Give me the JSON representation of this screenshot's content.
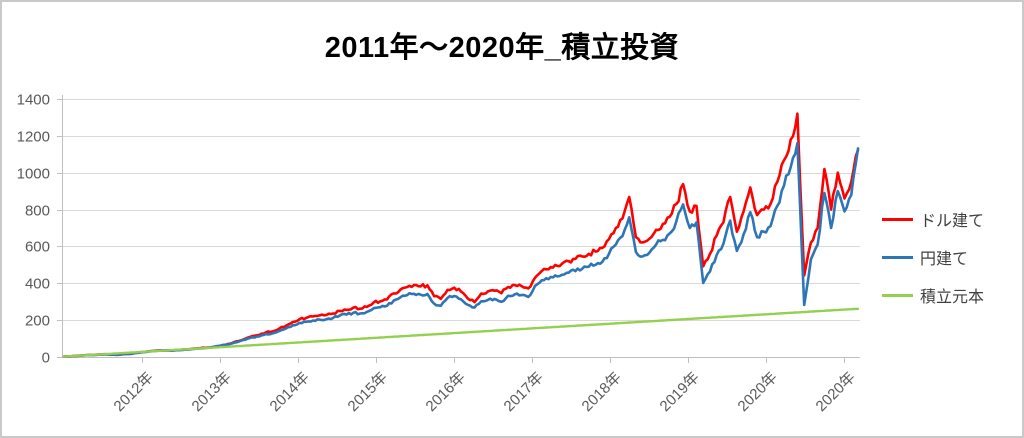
{
  "page": {
    "background": "#FFFFFF",
    "frame_border_color": "#C9C9C9"
  },
  "chart_data": {
    "type": "line",
    "title": "2011年～2020年_積立投資",
    "title_color": "#000000",
    "grid": true,
    "grid_color": "#D9D9D9",
    "axis_line_color": "#BFBFBF",
    "tick_label_color": "#595959",
    "legend_position": "right",
    "legend_text_color": "#404040",
    "ylim": [
      0,
      1400
    ],
    "y_ticks": [
      0,
      200,
      400,
      600,
      800,
      1000,
      1200,
      1400
    ],
    "y_tick_labels": [
      "0",
      "200",
      "400",
      "600",
      "800",
      "1000",
      "1200",
      "1400"
    ],
    "x_tick_labels": [
      "2012年",
      "2013年",
      "2014年",
      "2015年",
      "2016年",
      "2017年",
      "2018年",
      "2019年",
      "2020年",
      "2020年"
    ],
    "x_unit": "month",
    "x_start": "2011-01",
    "x_end": "2020-11",
    "series": [
      {
        "name": "ドル建て",
        "color": "#FF0000",
        "values": [
          2,
          4,
          7,
          9,
          11,
          13,
          15,
          13,
          12,
          16,
          18,
          24,
          28,
          32,
          35,
          36,
          35,
          38,
          41,
          44,
          48,
          50,
          53,
          59,
          66,
          76,
          87,
          100,
          114,
          119,
          134,
          139,
          154,
          170,
          190,
          205,
          212,
          220,
          226,
          228,
          236,
          250,
          256,
          268,
          262,
          272,
          295,
          302,
          312,
          345,
          366,
          380,
          390,
          383,
          389,
          330,
          315,
          364,
          376,
          355,
          318,
          298,
          344,
          356,
          360,
          346,
          380,
          390,
          385,
          372,
          430,
          466,
          476,
          500,
          506,
          520,
          532,
          546,
          560,
          572,
          592,
          640,
          700,
          752,
          868,
          650,
          622,
          642,
          690,
          722,
          760,
          830,
          938,
          790,
          820,
          492,
          560,
          660,
          730,
          868,
          680,
          790,
          920,
          770,
          800,
          830,
          950,
          1068,
          1180,
          1320,
          442,
          620,
          700,
          1020,
          800,
          1000,
          860,
          950,
          1122
        ]
      },
      {
        "name": "円建て",
        "color": "#2E75B6",
        "values": [
          2,
          4,
          6,
          9,
          11,
          12,
          14,
          13,
          12,
          16,
          17,
          23,
          27,
          31,
          34,
          35,
          34,
          37,
          40,
          43,
          47,
          49,
          53,
          60,
          66,
          74,
          84,
          95,
          107,
          111,
          124,
          128,
          141,
          155,
          172,
          185,
          191,
          198,
          203,
          205,
          212,
          225,
          230,
          240,
          236,
          245,
          264,
          270,
          278,
          306,
          324,
          336,
          343,
          338,
          342,
          290,
          278,
          320,
          331,
          313,
          283,
          268,
          302,
          310,
          315,
          300,
          332,
          340,
          336,
          326,
          386,
          416,
          422,
          442,
          446,
          458,
          466,
          478,
          490,
          500,
          516,
          560,
          610,
          656,
          758,
          570,
          546,
          566,
          610,
          636,
          670,
          735,
          828,
          700,
          730,
          402,
          464,
          554,
          614,
          740,
          576,
          666,
          786,
          650,
          680,
          710,
          820,
          930,
          1030,
          1160,
          282,
          530,
          610,
          890,
          700,
          900,
          790,
          880,
          1132
        ]
      },
      {
        "name": "積立元本",
        "color": "#92D050",
        "values": [
          2.2,
          4.4,
          6.6,
          8.8,
          11,
          13.2,
          15.4,
          17.6,
          19.8,
          22,
          24.2,
          26.4,
          28.6,
          30.8,
          33,
          35.2,
          37.4,
          39.6,
          41.8,
          44,
          46.2,
          48.4,
          50.6,
          52.8,
          55,
          57.2,
          59.4,
          61.6,
          63.8,
          66,
          68.2,
          70.4,
          72.6,
          74.8,
          77,
          79.2,
          81.4,
          83.6,
          85.8,
          88,
          90.2,
          92.4,
          94.6,
          96.8,
          99,
          101.2,
          103.4,
          105.6,
          107.8,
          110,
          112.2,
          114.4,
          116.6,
          118.8,
          121,
          123.2,
          125.4,
          127.6,
          129.8,
          132,
          134.2,
          136.4,
          138.6,
          140.8,
          143,
          145.2,
          147.4,
          149.6,
          151.8,
          154,
          156.2,
          158.4,
          160.6,
          162.8,
          165,
          167.2,
          169.4,
          171.6,
          173.8,
          176,
          178.2,
          180.4,
          182.6,
          184.8,
          187,
          189.2,
          191.4,
          193.6,
          195.8,
          198,
          200.2,
          202.4,
          204.6,
          206.8,
          209,
          211.2,
          213.4,
          215.6,
          217.8,
          220,
          222.2,
          224.4,
          226.6,
          228.8,
          231,
          233.2,
          235.4,
          237.6,
          239.8,
          242,
          244.2,
          246.4,
          248.6,
          250.8,
          253,
          255.2,
          257.4,
          259.6,
          261.8
        ]
      }
    ]
  }
}
